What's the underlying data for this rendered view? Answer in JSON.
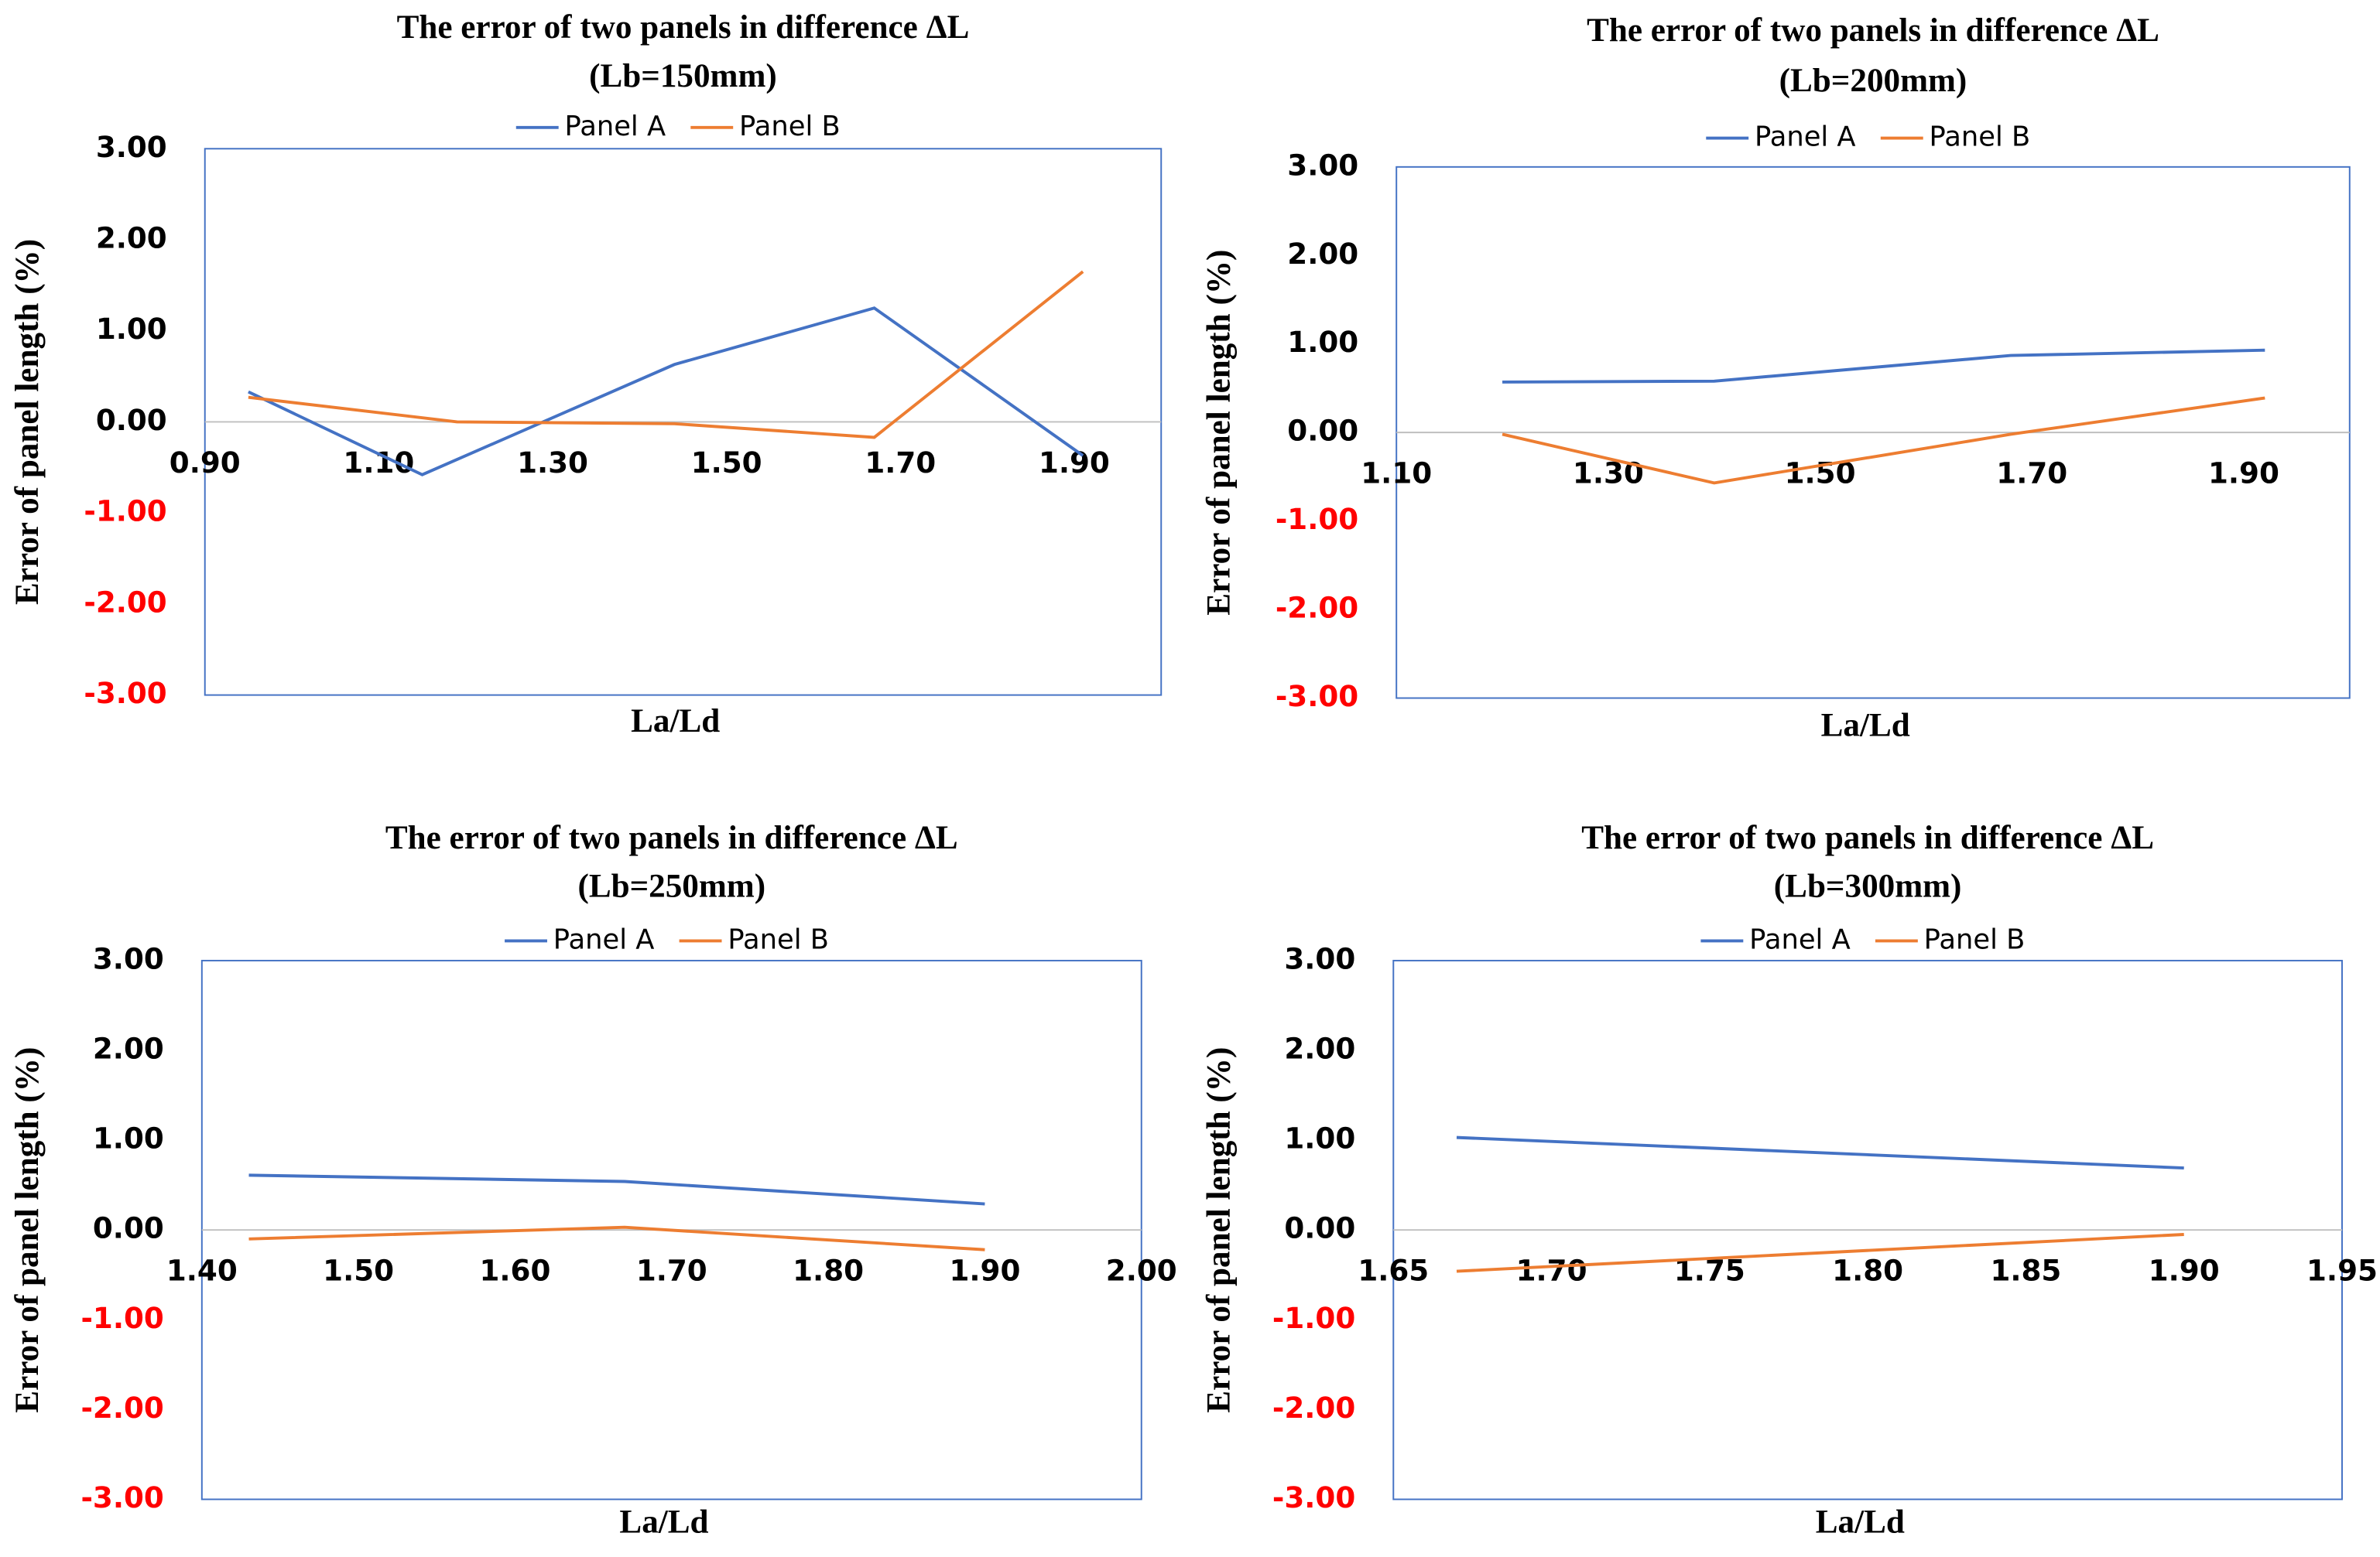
{
  "chart_data": [
    {
      "type": "line",
      "title": "The error of two panels in difference  ΔL",
      "subtitle": "(Lb=150mm)",
      "x_label": "La/Ld",
      "y_label": "Error of panel length (%)",
      "xlim": [
        0.9,
        2.0
      ],
      "xticks": [
        {
          "value": 0.9,
          "label": "0.90"
        },
        {
          "value": 1.1,
          "label": "1.10"
        },
        {
          "value": 1.3,
          "label": "1.30"
        },
        {
          "value": 1.5,
          "label": "1.50"
        },
        {
          "value": 1.7,
          "label": "1.70"
        },
        {
          "value": 1.9,
          "label": "1.90"
        }
      ],
      "ylim": [
        -3,
        3
      ],
      "yticks": [
        {
          "value": 3,
          "label": "3.00"
        },
        {
          "value": 2,
          "label": "2.00"
        },
        {
          "value": 1,
          "label": "1.00"
        },
        {
          "value": 0,
          "label": "0.00"
        },
        {
          "value": -1,
          "label": "-1.00"
        },
        {
          "value": -2,
          "label": "-2.00"
        },
        {
          "value": -3,
          "label": "-3.00"
        }
      ],
      "negative_tick_color": "#ff0000",
      "legend": "top",
      "series": [
        {
          "name": "Panel A",
          "color": "#4472c4",
          "x": [
            0.95,
            1.15,
            1.44,
            1.67,
            1.91
          ],
          "values": [
            0.33,
            -0.58,
            0.63,
            1.25,
            -0.37
          ]
        },
        {
          "name": "Panel B",
          "color": "#ed7d31",
          "x": [
            0.95,
            1.19,
            1.44,
            1.67,
            1.91
          ],
          "values": [
            0.27,
            0.0,
            -0.02,
            -0.17,
            1.65
          ]
        }
      ]
    },
    {
      "type": "line",
      "title": "The error of two panels in difference  ΔL",
      "subtitle": "(Lb=200mm)",
      "x_label": "La/Ld",
      "y_label": "Error of panel length (%)",
      "xlim": [
        1.1,
        2.0
      ],
      "xticks": [
        {
          "value": 1.1,
          "label": "1.10"
        },
        {
          "value": 1.3,
          "label": "1.30"
        },
        {
          "value": 1.5,
          "label": "1.50"
        },
        {
          "value": 1.7,
          "label": "1.70"
        },
        {
          "value": 1.9,
          "label": "1.90"
        }
      ],
      "ylim": [
        -3,
        3
      ],
      "yticks": [
        {
          "value": 3,
          "label": "3.00"
        },
        {
          "value": 2,
          "label": "2.00"
        },
        {
          "value": 1,
          "label": "1.00"
        },
        {
          "value": 0,
          "label": "0.00"
        },
        {
          "value": -1,
          "label": "-1.00"
        },
        {
          "value": -2,
          "label": "-2.00"
        },
        {
          "value": -3,
          "label": "-3.00"
        }
      ],
      "negative_tick_color": "#ff0000",
      "legend": "top",
      "series": [
        {
          "name": "Panel A",
          "color": "#4472c4",
          "x": [
            1.2,
            1.4,
            1.68,
            1.92
          ],
          "values": [
            0.57,
            0.58,
            0.87,
            0.93
          ]
        },
        {
          "name": "Panel B",
          "color": "#ed7d31",
          "x": [
            1.2,
            1.4,
            1.68,
            1.92
          ],
          "values": [
            -0.02,
            -0.57,
            -0.02,
            0.39
          ]
        }
      ]
    },
    {
      "type": "line",
      "title": "The error of two panels in difference  ΔL",
      "subtitle": "(Lb=250mm)",
      "x_label": "La/Ld",
      "y_label": "Error of panel length (%)",
      "xlim": [
        1.4,
        2.0
      ],
      "xticks": [
        {
          "value": 1.4,
          "label": "1.40"
        },
        {
          "value": 1.5,
          "label": "1.50"
        },
        {
          "value": 1.6,
          "label": "1.60"
        },
        {
          "value": 1.7,
          "label": "1.70"
        },
        {
          "value": 1.8,
          "label": "1.80"
        },
        {
          "value": 1.9,
          "label": "1.90"
        },
        {
          "value": 2.0,
          "label": "2.00"
        }
      ],
      "ylim": [
        -3,
        3
      ],
      "yticks": [
        {
          "value": 3,
          "label": "3.00"
        },
        {
          "value": 2,
          "label": "2.00"
        },
        {
          "value": 1,
          "label": "1.00"
        },
        {
          "value": 0,
          "label": "0.00"
        },
        {
          "value": -1,
          "label": "-1.00"
        },
        {
          "value": -2,
          "label": "-2.00"
        },
        {
          "value": -3,
          "label": "-3.00"
        }
      ],
      "negative_tick_color": "#ff0000",
      "legend": "top",
      "series": [
        {
          "name": "Panel A",
          "color": "#4472c4",
          "x": [
            1.43,
            1.67,
            1.9
          ],
          "values": [
            0.61,
            0.54,
            0.29
          ]
        },
        {
          "name": "Panel B",
          "color": "#ed7d31",
          "x": [
            1.43,
            1.67,
            1.9
          ],
          "values": [
            -0.1,
            0.03,
            -0.22
          ]
        }
      ]
    },
    {
      "type": "line",
      "title": "The error of two panels in difference  ΔL",
      "subtitle": "(Lb=300mm)",
      "x_label": "La/Ld",
      "y_label": "Error of panel length (%)",
      "xlim": [
        1.65,
        1.95
      ],
      "xticks": [
        {
          "value": 1.65,
          "label": "1.65"
        },
        {
          "value": 1.7,
          "label": "1.70"
        },
        {
          "value": 1.75,
          "label": "1.75"
        },
        {
          "value": 1.8,
          "label": "1.80"
        },
        {
          "value": 1.85,
          "label": "1.85"
        },
        {
          "value": 1.9,
          "label": "1.90"
        },
        {
          "value": 1.95,
          "label": "1.95"
        }
      ],
      "ylim": [
        -3,
        3
      ],
      "yticks": [
        {
          "value": 3,
          "label": "3.00"
        },
        {
          "value": 2,
          "label": "2.00"
        },
        {
          "value": 1,
          "label": "1.00"
        },
        {
          "value": 0,
          "label": "0.00"
        },
        {
          "value": -1,
          "label": "-1.00"
        },
        {
          "value": -2,
          "label": "-2.00"
        },
        {
          "value": -3,
          "label": "-3.00"
        }
      ],
      "negative_tick_color": "#ff0000",
      "legend": "top",
      "series": [
        {
          "name": "Panel A",
          "color": "#4472c4",
          "x": [
            1.67,
            1.9
          ],
          "values": [
            1.03,
            0.69
          ]
        },
        {
          "name": "Panel B",
          "color": "#ed7d31",
          "x": [
            1.67,
            1.9
          ],
          "values": [
            -0.46,
            -0.05
          ]
        }
      ]
    }
  ]
}
